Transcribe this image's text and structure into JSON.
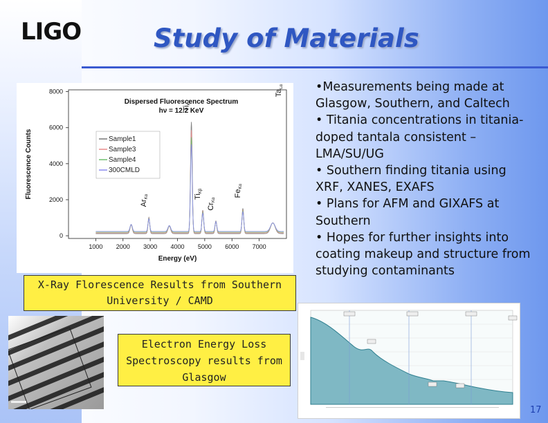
{
  "header": {
    "logo_text": "LIGO",
    "title": "Study of Materials"
  },
  "chart_data": {
    "type": "line",
    "title": "Dispersed Fluorescence Spectrum",
    "subtitle": "hν = 12.2 KeV",
    "xlabel": "Energy (eV)",
    "ylabel": "Fluorescence Counts",
    "xlim": [
      0,
      8000
    ],
    "ylim": [
      -150,
      8100
    ],
    "x_ticks": [
      1000,
      2000,
      3000,
      4000,
      5000,
      6000,
      7000
    ],
    "y_ticks": [
      0,
      2000,
      4000,
      6000,
      8000
    ],
    "legend": [
      "Sample1",
      "Sample3",
      "Sample4",
      "300CMLD"
    ],
    "legend_position": "upper-left",
    "colors": [
      "#777777",
      "#e88a8a",
      "#6fbf6f",
      "#8a8aef"
    ],
    "peaks": [
      {
        "label": "Ar",
        "sub": "Kα",
        "x": 2950,
        "y": 900
      },
      {
        "label": "Ti",
        "sub": "Kα",
        "x": 4510,
        "y": 6200
      },
      {
        "label": "Ti",
        "sub": "Kβ",
        "x": 4930,
        "y": 1300
      },
      {
        "label": "Cr",
        "sub": "Kα",
        "x": 5410,
        "y": 700
      },
      {
        "label": "Fe",
        "sub": "Kα",
        "x": 6400,
        "y": 1400
      },
      {
        "label": "Ta",
        "sub": "Lα",
        "x": 8150,
        "y": 7000
      }
    ]
  },
  "captions": {
    "xray": "X-Ray Florescence Results from Southern University / CAMD",
    "eels": "Electron Energy Loss Spectroscopy results from Glasgow"
  },
  "bullets": [
    "•Measurements being made at Glasgow, Southern, and Caltech",
    "• Titania concentrations in titania-doped tantala consistent – LMA/SU/UG",
    "• Southern finding titania using XRF, XANES, EXAFS",
    "• Plans for AFM and GIXAFS at Southern",
    "• Hopes for further insights into coating makeup and structure from studying contaminants"
  ],
  "page_number": "17"
}
